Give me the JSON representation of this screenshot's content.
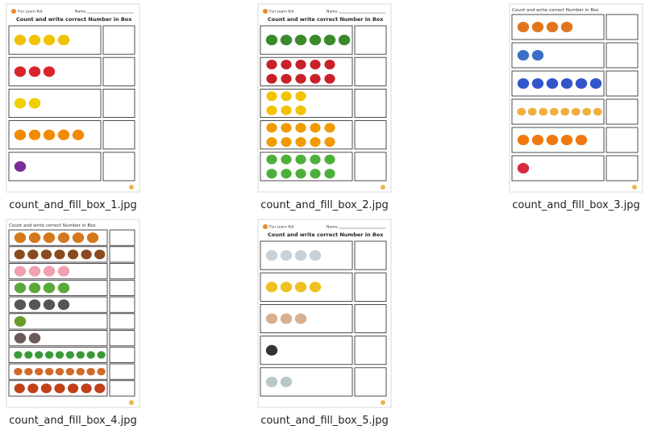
{
  "files": [
    {
      "name": "count_and_fill_box_1.jpg",
      "brand": "Fun Learn Kid",
      "name_label": "Name:",
      "title": "Count and write correct Number  in Box"
    },
    {
      "name": "count_and_fill_box_2.jpg",
      "brand": "Fun Learn Kid",
      "name_label": "Name:",
      "title": "Count and write correct Number  in Box"
    },
    {
      "name": "count_and_fill_box_3.jpg",
      "title": "Count and write correct Number in Box"
    },
    {
      "name": "count_and_fill_box_4.jpg",
      "title": "Count and write correct Number in Box"
    },
    {
      "name": "count_and_fill_box_5.jpg",
      "brand": "Fun Learn Kid",
      "name_label": "Name:",
      "title": "Count and write correct Number  in Box"
    }
  ]
}
